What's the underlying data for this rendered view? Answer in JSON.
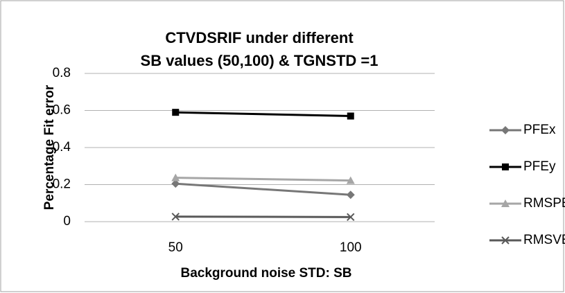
{
  "chart_data": {
    "type": "line",
    "title": [
      "CTVDSRIF under different",
      "SB values (50,100) & TGNSTD =1"
    ],
    "x_label": "Background noise STD: SB",
    "y_label": "Percentage Fit error",
    "categories": [
      "50",
      "100"
    ],
    "series": [
      {
        "name": "PFEx",
        "color": "#777777",
        "marker": "diamond",
        "values": [
          0.205,
          0.145
        ]
      },
      {
        "name": "PFEy",
        "color": "#000000",
        "marker": "square",
        "values": [
          0.59,
          0.57
        ]
      },
      {
        "name": "RMSPE",
        "color": "#a6a6a6",
        "marker": "triangle",
        "values": [
          0.237,
          0.222
        ]
      },
      {
        "name": "RMSVE",
        "color": "#595959",
        "marker": "x",
        "values": [
          0.027,
          0.025
        ]
      }
    ],
    "ylim": [
      0,
      0.8
    ],
    "yticks": [
      0,
      0.2,
      0.4,
      0.6,
      0.8
    ],
    "grid": true,
    "legend": "right"
  }
}
